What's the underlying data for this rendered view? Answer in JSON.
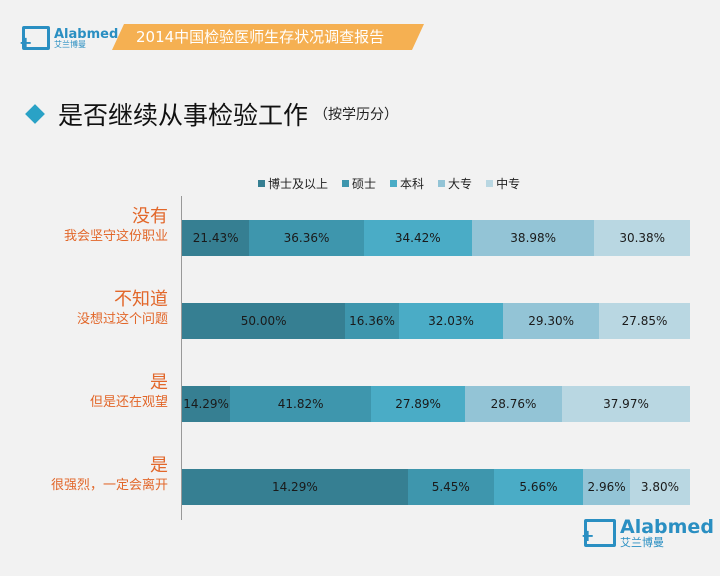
{
  "header": {
    "logo_en": "Alabmed",
    "logo_cn": "艾兰博曼",
    "banner": "2014中国检验医师生存状况调查报告"
  },
  "title": {
    "main": "是否继续从事检验工作",
    "sub": "（按学历分）"
  },
  "chart_data": {
    "type": "bar",
    "orientation": "horizontal",
    "stacked": "percent",
    "legend_position": "top",
    "grid": false,
    "series": [
      {
        "name": "博士及以上",
        "color": "#367f92",
        "values": [
          21.43,
          50.0,
          14.29,
          14.29
        ]
      },
      {
        "name": "硕士",
        "color": "#3e96ad",
        "values": [
          36.36,
          16.36,
          41.82,
          5.45
        ]
      },
      {
        "name": "本科",
        "color": "#4aacc6",
        "values": [
          34.42,
          32.03,
          27.89,
          5.66
        ]
      },
      {
        "name": "大专",
        "color": "#93c4d6",
        "values": [
          38.98,
          29.3,
          28.76,
          2.96
        ]
      },
      {
        "name": "中专",
        "color": "#b9d7e2",
        "values": [
          30.38,
          27.85,
          37.97,
          3.8
        ]
      }
    ],
    "categories": [
      {
        "main": "没有",
        "sub": "我会坚守这份职业"
      },
      {
        "main": "不知道",
        "sub": "没想过这个问题"
      },
      {
        "main": "是",
        "sub": "但是还在观望"
      },
      {
        "main": "是",
        "sub": "很强烈，一定会离开"
      }
    ]
  },
  "colors": {
    "banner": "#f5b052",
    "accent": "#2aa2c6",
    "label": "#e2672a"
  }
}
